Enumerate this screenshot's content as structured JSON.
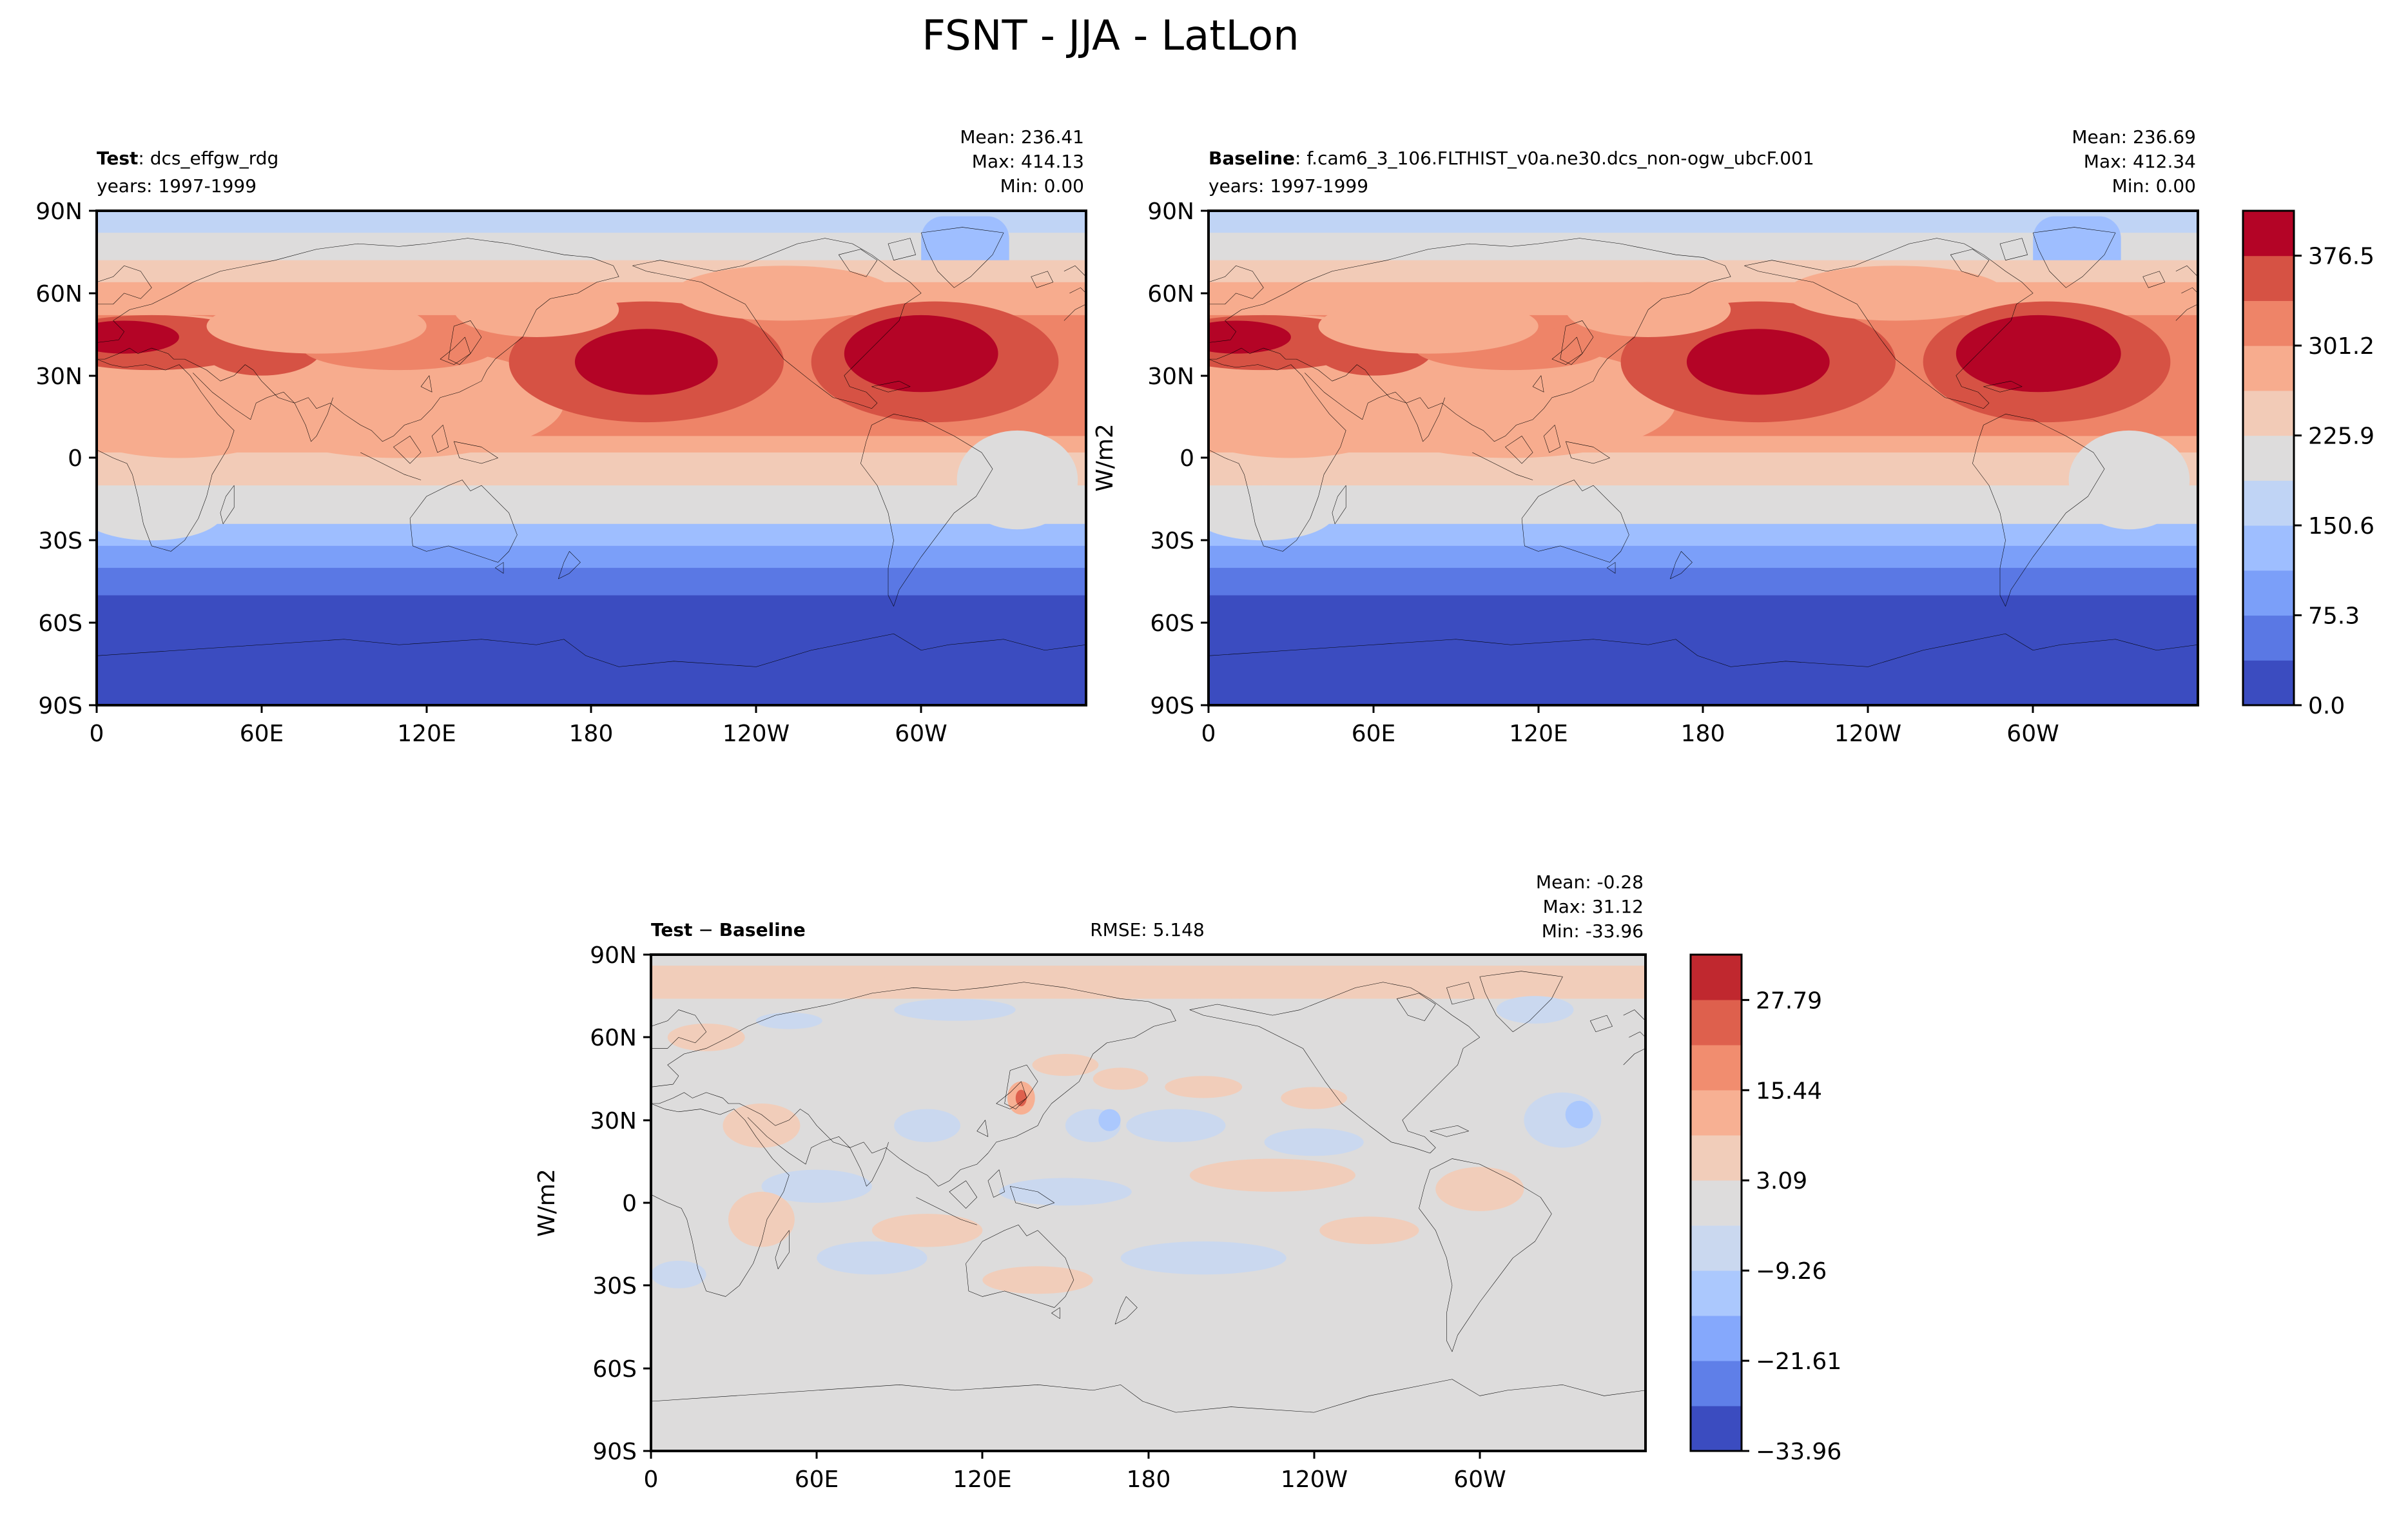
{
  "figure": {
    "title": "FSNT - JJA - LatLon"
  },
  "colors": {
    "seq_levels": [
      "#3b4cc0",
      "#5a78e4",
      "#7b9ff9",
      "#9ebeff",
      "#c0d4f5",
      "#dddcdc",
      "#f2cbb7",
      "#f7ac8e",
      "#ee8468",
      "#d65244",
      "#b40426"
    ],
    "diff_levels": [
      "#3b4cc0",
      "#5f7fe8",
      "#85a8fc",
      "#abc8fd",
      "#cad8ef",
      "#dddcdc",
      "#f1cdba",
      "#f7b093",
      "#f18d6f",
      "#de604d",
      "#c0282f"
    ],
    "axis": "#000000"
  },
  "panels": {
    "test": {
      "label_bold": "Test",
      "label_rest": ": dcs_effgw_rdg",
      "years": "years: 1997-1999",
      "mean": "Mean: 236.41",
      "max": "Max: 414.13",
      "min": "Min:  0.00"
    },
    "baseline": {
      "label_bold": "Baseline",
      "label_rest": ": f.cam6_3_106.FLTHIST_v0a.ne30.dcs_non-ogw_ubcF.001",
      "years": "years: 1997-1999",
      "mean": "Mean: 236.69",
      "max": "Max: 412.34",
      "min": "Min:  0.00",
      "ylabel": "W/m2"
    },
    "diff": {
      "label_a": "Test",
      "label_op": " − ",
      "label_b": "Baseline",
      "rmse": "RMSE: 5.148",
      "mean": "Mean: -0.28",
      "max": "Max: 31.12",
      "min": "Min: -33.96",
      "ylabel": "W/m2"
    }
  },
  "colorbars": {
    "top": {
      "ticks": [
        "0.0",
        "75.3",
        "150.6",
        "225.9",
        "301.2",
        "376.5"
      ],
      "values": [
        0.0,
        75.3,
        150.6,
        225.9,
        301.2,
        376.5
      ],
      "range": [
        0.0,
        414.1
      ]
    },
    "bottom": {
      "ticks": [
        "−33.96",
        "−21.61",
        "−9.26",
        "3.09",
        "15.44",
        "27.79"
      ],
      "values": [
        -33.96,
        -21.61,
        -9.26,
        3.09,
        15.44,
        27.79
      ],
      "range": [
        -33.96,
        34.0
      ]
    }
  },
  "chart_data": [
    {
      "type": "heatmap",
      "title": "Test: dcs_effgw_rdg",
      "map": "lat-lon",
      "xticks": [
        "0",
        "60E",
        "120E",
        "180",
        "120W",
        "60W"
      ],
      "yticks": [
        "90N",
        "60N",
        "30N",
        "0",
        "30S",
        "60S",
        "90S"
      ],
      "stats": {
        "mean": 236.41,
        "max": 414.13,
        "min": 0.0
      },
      "units": "W/m2",
      "levels": [
        0.0,
        37.65,
        75.3,
        112.95,
        150.6,
        188.25,
        225.9,
        263.55,
        301.2,
        338.85,
        376.5,
        414.15
      ]
    },
    {
      "type": "heatmap",
      "title": "Baseline: f.cam6_3_106.FLTHIST_v0a.ne30.dcs_non-ogw_ubcF.001",
      "map": "lat-lon",
      "xticks": [
        "0",
        "60E",
        "120E",
        "180",
        "120W",
        "60W"
      ],
      "yticks": [
        "90N",
        "60N",
        "30N",
        "0",
        "30S",
        "60S",
        "90S"
      ],
      "stats": {
        "mean": 236.69,
        "max": 412.34,
        "min": 0.0
      },
      "units": "W/m2",
      "levels": [
        0.0,
        37.65,
        75.3,
        112.95,
        150.6,
        188.25,
        225.9,
        263.55,
        301.2,
        338.85,
        376.5,
        414.15
      ]
    },
    {
      "type": "heatmap",
      "title": "Test − Baseline",
      "map": "lat-lon",
      "xticks": [
        "0",
        "60E",
        "120E",
        "180",
        "120W",
        "60W"
      ],
      "yticks": [
        "90N",
        "60N",
        "30N",
        "0",
        "30S",
        "60S",
        "90S"
      ],
      "stats": {
        "mean": -0.28,
        "max": 31.12,
        "min": -33.96,
        "rmse": 5.148
      },
      "units": "W/m2",
      "levels": [
        -33.96,
        -27.78,
        -21.61,
        -15.43,
        -9.26,
        -3.09,
        3.09,
        9.26,
        15.44,
        21.61,
        27.79,
        33.96
      ]
    }
  ]
}
